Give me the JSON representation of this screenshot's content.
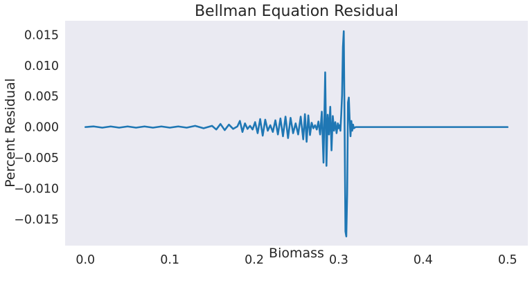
{
  "chart_data": {
    "type": "line",
    "title": "Bellman Equation Residual",
    "xlabel": "Biomass",
    "ylabel": "Percent Residual",
    "xlim": [
      -0.024,
      0.524
    ],
    "ylim": [
      -0.0193,
      0.0173
    ],
    "grid": false,
    "background": "#eaeaf2",
    "x_ticks": [
      0.0,
      0.1,
      0.2,
      0.3,
      0.4,
      0.5
    ],
    "x_tick_labels": [
      "0.0",
      "0.1",
      "0.2",
      "0.3",
      "0.4",
      "0.5"
    ],
    "y_ticks": [
      0.015,
      0.01,
      0.005,
      0.0,
      -0.005,
      -0.01,
      -0.015
    ],
    "y_tick_labels": [
      "0.015",
      "0.010",
      "0.005",
      "0.000",
      "−0.005",
      "−0.010",
      "−0.015"
    ],
    "series": [
      {
        "color": "#1f77b4",
        "x": [
          0.0,
          0.01,
          0.02,
          0.03,
          0.04,
          0.05,
          0.06,
          0.07,
          0.08,
          0.09,
          0.1,
          0.11,
          0.12,
          0.13,
          0.14,
          0.15,
          0.155,
          0.16,
          0.165,
          0.17,
          0.175,
          0.18,
          0.183,
          0.186,
          0.189,
          0.192,
          0.195,
          0.198,
          0.201,
          0.204,
          0.207,
          0.21,
          0.213,
          0.216,
          0.219,
          0.222,
          0.225,
          0.228,
          0.231,
          0.234,
          0.237,
          0.24,
          0.243,
          0.246,
          0.249,
          0.252,
          0.255,
          0.258,
          0.26,
          0.262,
          0.264,
          0.266,
          0.268,
          0.27,
          0.272,
          0.274,
          0.276,
          0.278,
          0.28,
          0.282,
          0.284,
          0.2855,
          0.287,
          0.2885,
          0.29,
          0.2915,
          0.293,
          0.2945,
          0.296,
          0.2975,
          0.299,
          0.3,
          0.301,
          0.302,
          0.303,
          0.304,
          0.305,
          0.306,
          0.307,
          0.308,
          0.309,
          0.31,
          0.311,
          0.312,
          0.313,
          0.314,
          0.315,
          0.316,
          0.317,
          0.318,
          0.32,
          0.33,
          0.35,
          0.4,
          0.45,
          0.5
        ],
        "y": [
          0.0,
          0.0001,
          -0.0001,
          0.0001,
          -0.0001,
          0.0001,
          -0.0001,
          0.0001,
          -0.0001,
          0.0001,
          -0.0001,
          0.0001,
          -0.0001,
          0.0002,
          -0.0002,
          0.0002,
          -0.0004,
          0.0005,
          -0.0005,
          0.0004,
          -0.0003,
          0.0001,
          0.001,
          -0.0008,
          0.0006,
          -0.0003,
          0.0002,
          -0.0004,
          0.0008,
          -0.001,
          0.0013,
          -0.0014,
          0.0012,
          -0.0006,
          0.0003,
          -0.0008,
          0.0011,
          -0.0012,
          0.0014,
          -0.0015,
          0.0017,
          -0.0018,
          0.0015,
          -0.001,
          0.0006,
          -0.0012,
          0.0017,
          -0.002,
          0.0021,
          -0.0024,
          0.0019,
          -0.0013,
          0.0007,
          -0.0002,
          0.0003,
          -0.0004,
          0.0009,
          -0.0012,
          0.0025,
          -0.0058,
          0.0089,
          -0.0063,
          0.002,
          -0.0012,
          0.0033,
          -0.0038,
          0.0018,
          -0.0006,
          0.0008,
          -0.001,
          0.0006,
          -0.0002,
          0.0003,
          -0.0006,
          0.002,
          0.0052,
          0.013,
          0.0156,
          0.0,
          -0.017,
          -0.0178,
          -0.011,
          0.004,
          0.0048,
          0.001,
          -0.0015,
          0.001,
          -0.0006,
          0.0004,
          -0.0002,
          0.0,
          0.0,
          0.0,
          0.0,
          0.0,
          0.0
        ]
      }
    ]
  }
}
